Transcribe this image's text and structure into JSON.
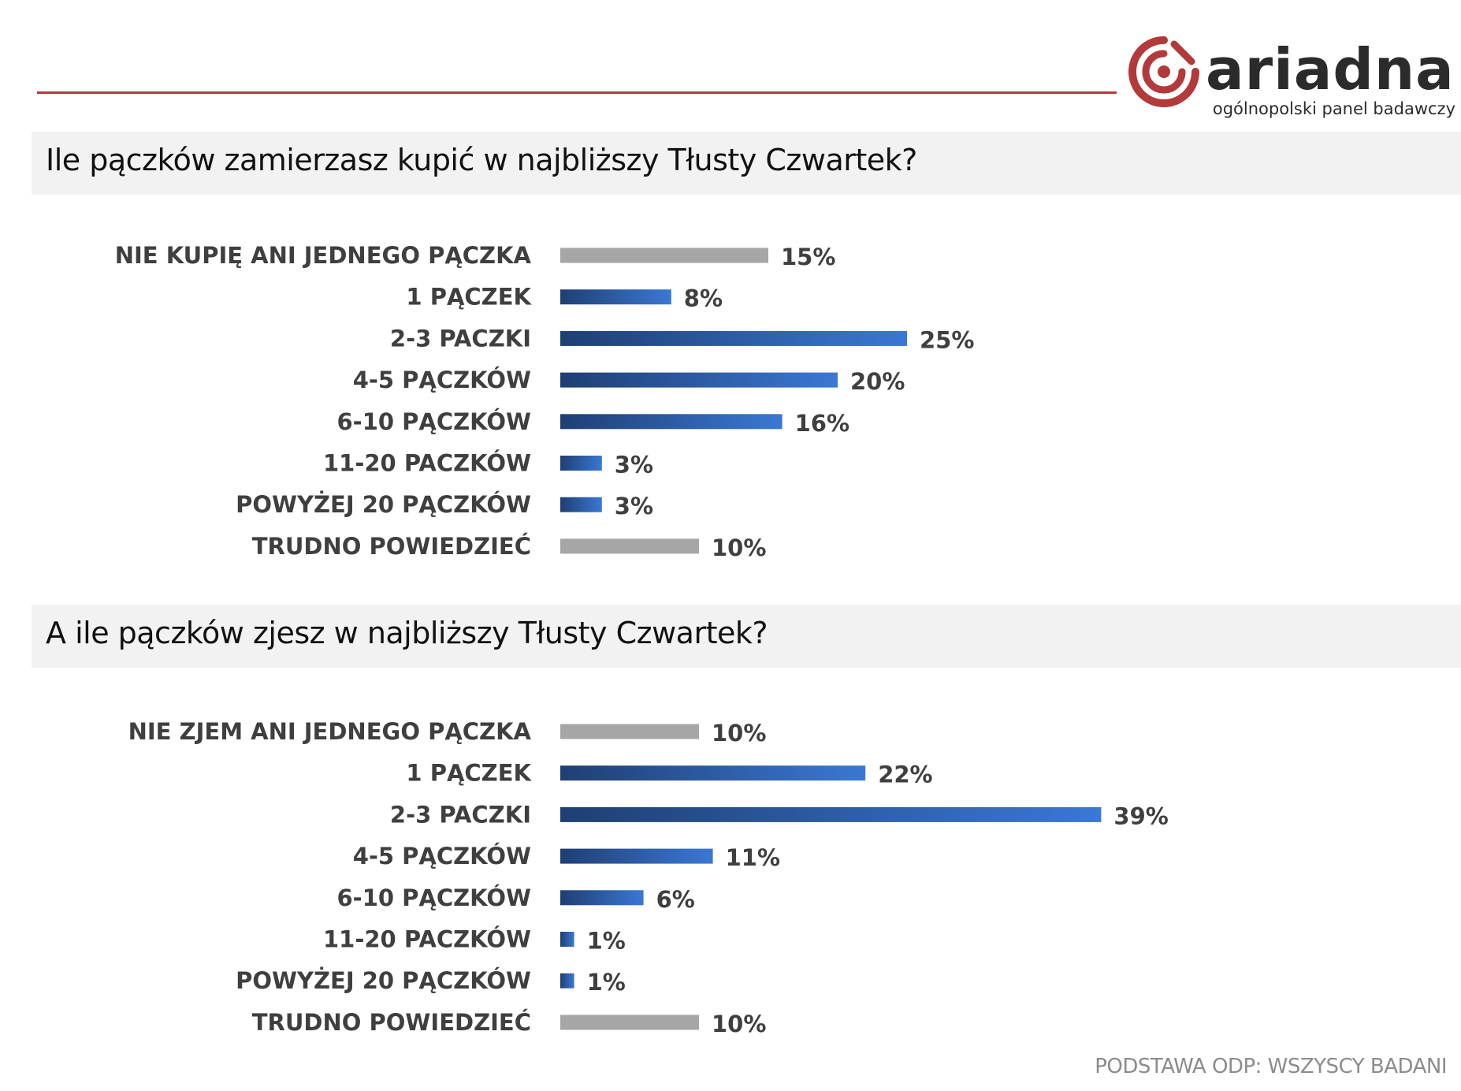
{
  "logo": {
    "name": "ariadna",
    "tagline": "ogólnopolski panel badawczy",
    "brand_color": "#b3393a",
    "text_color": "#2b2b2b"
  },
  "colors": {
    "bar_blue_dark": "#1f3f73",
    "bar_blue_light": "#3a78d4",
    "bar_gray": "#a6a6a6",
    "label": "#3f3f3f",
    "band": "#f2f2f2"
  },
  "chart_data": [
    {
      "type": "bar",
      "orientation": "horizontal",
      "title": "Ile pączków zamierzasz kupić w najbliższy Tłusty Czwartek?",
      "categories": [
        "NIE KUPIĘ ANI JEDNEGO PĄCZKA",
        "1 PĄCZEK",
        "2-3 PACZKI",
        "4-5 PĄCZKÓW",
        "6-10 PĄCZKÓW",
        "11-20 PACZKÓW",
        "POWYŻEJ 20 PĄCZKÓW",
        "TRUDNO POWIEDZIEĆ"
      ],
      "values": [
        15,
        8,
        25,
        20,
        16,
        3,
        3,
        10
      ],
      "value_labels": [
        "15%",
        "8%",
        "25%",
        "20%",
        "16%",
        "3%",
        "3%",
        "10%"
      ],
      "bar_styles": [
        "gray",
        "blue",
        "blue",
        "blue",
        "blue",
        "blue",
        "blue",
        "gray"
      ],
      "unit": "%"
    },
    {
      "type": "bar",
      "orientation": "horizontal",
      "title": "A ile pączków zjesz w najbliższy Tłusty Czwartek?",
      "categories": [
        "NIE ZJEM ANI JEDNEGO PĄCZKA",
        "1 PĄCZEK",
        "2-3 PACZKI",
        "4-5 PĄCZKÓW",
        "6-10 PĄCZKÓW",
        "11-20 PACZKÓW",
        "POWYŻEJ 20 PĄCZKÓW",
        "TRUDNO POWIEDZIEĆ"
      ],
      "values": [
        10,
        22,
        39,
        11,
        6,
        1,
        1,
        10
      ],
      "value_labels": [
        "10%",
        "22%",
        "39%",
        "11%",
        "6%",
        "1%",
        "1%",
        "10%"
      ],
      "bar_styles": [
        "gray",
        "blue",
        "blue",
        "blue",
        "blue",
        "blue",
        "blue",
        "gray"
      ],
      "unit": "%"
    }
  ],
  "footer": {
    "note": "PODSTAWA ODP: WSZYSCY BADANI"
  }
}
